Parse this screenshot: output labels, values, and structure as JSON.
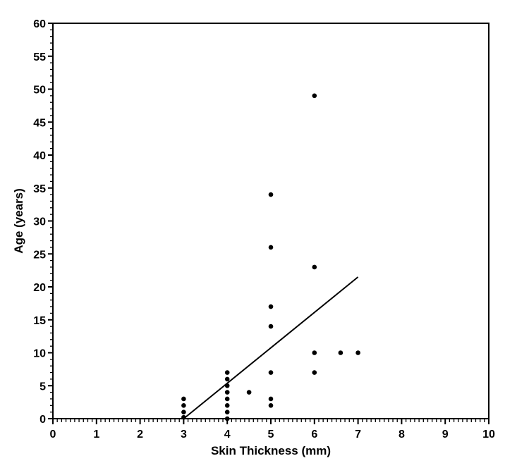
{
  "chart_data": {
    "type": "scatter",
    "title": "",
    "xlabel": "Skin Thickness (mm)",
    "ylabel": "Age (years)",
    "xlim": [
      0,
      10
    ],
    "ylim": [
      0,
      60
    ],
    "x_ticks": [
      "0",
      "1",
      "2",
      "3",
      "4",
      "5",
      "6",
      "7",
      "8",
      "9",
      "10"
    ],
    "y_ticks": [
      "0",
      "5",
      "10",
      "15",
      "20",
      "25",
      "30",
      "35",
      "40",
      "45",
      "50",
      "55",
      "60"
    ],
    "grid": false,
    "legend": "none",
    "point_color": "#000000",
    "series": [
      {
        "points": [
          [
            3,
            0.2
          ],
          [
            3,
            1
          ],
          [
            3,
            2
          ],
          [
            3,
            3
          ],
          [
            4,
            0
          ],
          [
            4,
            1
          ],
          [
            4,
            2
          ],
          [
            4,
            3
          ],
          [
            4,
            4
          ],
          [
            4,
            5
          ],
          [
            4,
            6
          ],
          [
            4,
            7
          ],
          [
            4.5,
            4
          ],
          [
            5,
            2
          ],
          [
            5,
            3
          ],
          [
            5,
            7
          ],
          [
            5,
            14
          ],
          [
            5,
            17
          ],
          [
            5,
            26
          ],
          [
            5,
            34
          ],
          [
            6,
            7
          ],
          [
            6,
            10
          ],
          [
            6,
            23
          ],
          [
            6,
            49
          ],
          [
            6.6,
            10
          ],
          [
            7,
            10
          ]
        ]
      }
    ],
    "trend_line": {
      "points": [
        [
          3,
          0
        ],
        [
          7,
          21.5
        ]
      ]
    }
  }
}
